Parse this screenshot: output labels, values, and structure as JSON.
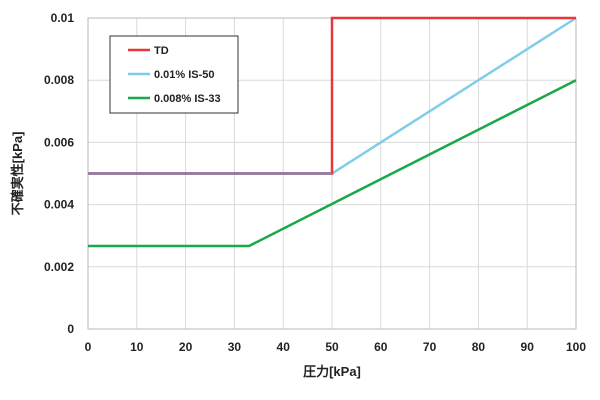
{
  "chart_data": {
    "type": "line",
    "title": "",
    "xlabel": "圧力[kPa]",
    "ylabel": "不確実性[kPa]",
    "xlim": [
      0,
      100
    ],
    "ylim": [
      0,
      0.01
    ],
    "x_ticks": [
      "0",
      "10",
      "20",
      "30",
      "40",
      "50",
      "60",
      "70",
      "80",
      "90",
      "100"
    ],
    "y_ticks": [
      "0",
      "0.002",
      "0.004",
      "0.006",
      "0.008",
      "0.01"
    ],
    "grid": true,
    "legend_position": "top-left",
    "series": [
      {
        "name": "TD",
        "color": "#e8363b",
        "points": [
          [
            0,
            0.005
          ],
          [
            50,
            0.005
          ],
          [
            50,
            0.01
          ],
          [
            100,
            0.01
          ]
        ]
      },
      {
        "name": "0.01% IS-50",
        "color": "#7fcdea",
        "points": [
          [
            0,
            0.005
          ],
          [
            50,
            0.005
          ],
          [
            100,
            0.01
          ]
        ]
      },
      {
        "name": "0.008% IS-33",
        "color": "#1aa84a",
        "points": [
          [
            0,
            0.00267
          ],
          [
            33,
            0.00267
          ],
          [
            100,
            0.008
          ]
        ]
      }
    ],
    "overlap_color": "#8a7fa6"
  }
}
